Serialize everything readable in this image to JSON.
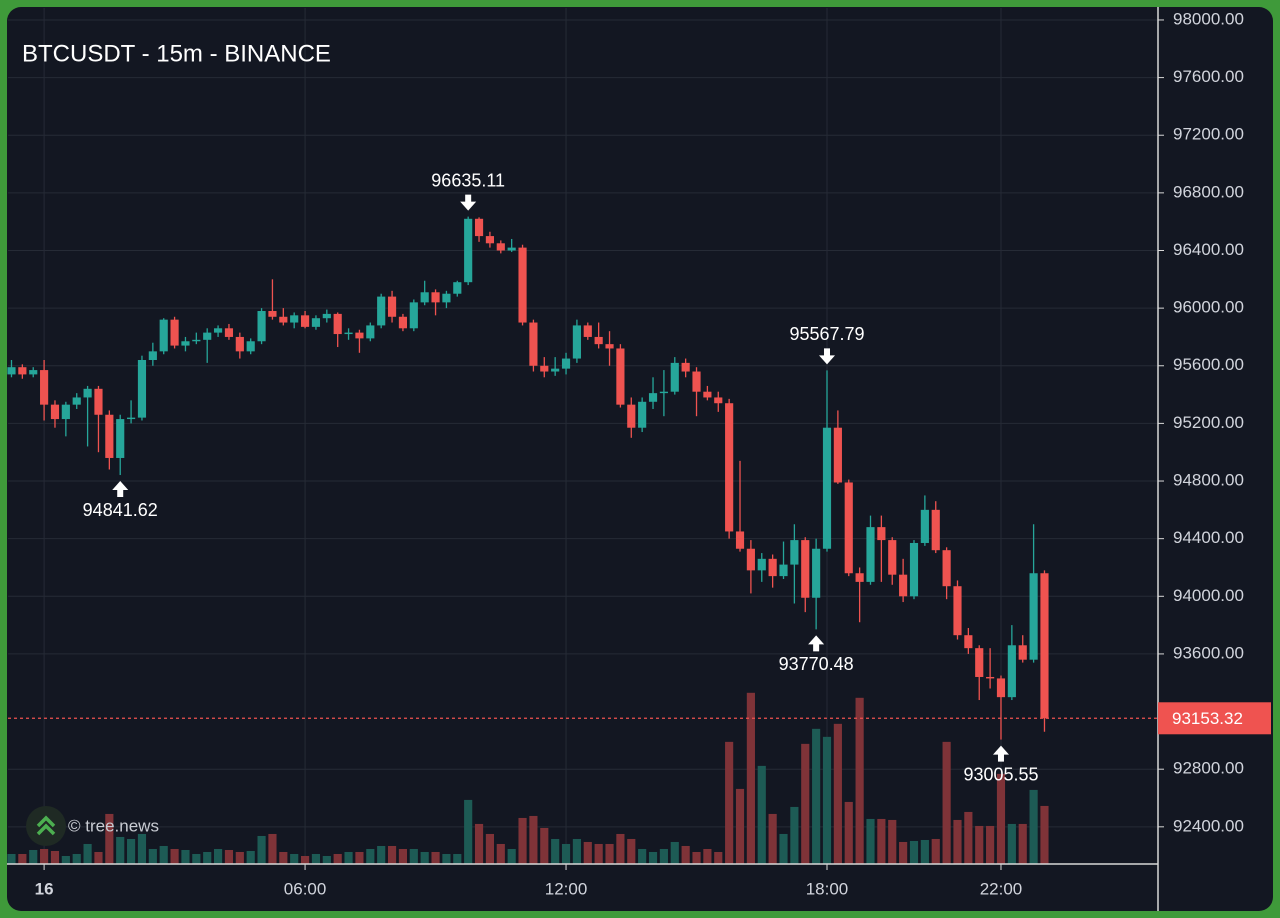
{
  "chart_data": {
    "type": "candlestick",
    "title": "BTCUSDT - 15m - BINANCE",
    "watermark": "© tree.news",
    "x": [
      -0.75,
      -0.5,
      -0.25,
      0,
      0.25,
      0.5,
      0.75,
      1,
      1.25,
      1.5,
      1.75,
      2,
      2.25,
      2.5,
      2.75,
      3,
      3.25,
      3.5,
      3.75,
      4,
      4.25,
      4.5,
      4.75,
      5,
      5.25,
      5.5,
      5.75,
      6,
      6.25,
      6.5,
      6.75,
      7,
      7.25,
      7.5,
      7.75,
      8,
      8.25,
      8.5,
      8.75,
      9,
      9.25,
      9.5,
      9.75,
      10,
      10.25,
      10.5,
      10.75,
      11,
      11.25,
      11.5,
      11.75,
      12,
      12.25,
      12.5,
      12.75,
      13,
      13.25,
      13.5,
      13.75,
      14,
      14.25,
      14.5,
      14.75,
      15,
      15.25,
      15.5,
      15.75,
      16,
      16.25,
      16.5,
      16.75,
      17,
      17.25,
      17.5,
      17.75,
      18,
      18.25,
      18.5,
      18.75,
      19,
      19.25,
      19.5,
      19.75,
      20,
      20.25,
      20.5,
      20.75,
      21,
      21.25,
      21.5,
      21.75,
      22,
      22.25,
      22.5,
      22.75,
      23
    ],
    "open": [
      95540,
      95590,
      95540,
      95570,
      95330,
      95230,
      95330,
      95380,
      95440,
      95260,
      94960,
      95230,
      95240,
      95640,
      95700,
      95920,
      95740,
      95770,
      95780,
      95830,
      95860,
      95800,
      95700,
      95770,
      95980,
      95940,
      95900,
      95950,
      95870,
      95930,
      95960,
      95820,
      95830,
      95790,
      95880,
      96080,
      95940,
      95860,
      96040,
      96110,
      96040,
      96100,
      96180,
      96620,
      96500,
      96450,
      96400,
      96420,
      95900,
      95600,
      95560,
      95580,
      95650,
      95880,
      95800,
      95750,
      95720,
      95330,
      95170,
      95350,
      95410,
      95420,
      95620,
      95560,
      95420,
      95380,
      95340,
      94450,
      94330,
      94180,
      94260,
      94140,
      94220,
      94390,
      93990,
      94330,
      95170,
      94790,
      94160,
      94100,
      94480,
      94390,
      94150,
      94000,
      94370,
      94600,
      94320,
      94070,
      93730,
      93640,
      93440,
      93430,
      93300,
      93660,
      93560,
      94160
    ],
    "high": [
      95640,
      95610,
      95590,
      95640,
      95360,
      95350,
      95410,
      95460,
      95460,
      95290,
      95260,
      95360,
      95670,
      95760,
      95930,
      95940,
      95800,
      95830,
      95860,
      95880,
      95890,
      95830,
      95790,
      96000,
      96200,
      96000,
      95970,
      95980,
      95950,
      95990,
      95970,
      95860,
      95850,
      95900,
      96100,
      96120,
      95960,
      96060,
      96190,
      96130,
      96120,
      96190,
      96635.11,
      96630,
      96530,
      96470,
      96480,
      96440,
      95920,
      95660,
      95660,
      95690,
      95920,
      95900,
      95900,
      95840,
      95750,
      95380,
      95380,
      95520,
      95570,
      95660,
      95650,
      95590,
      95460,
      95420,
      95370,
      94940,
      94390,
      94300,
      94290,
      94380,
      94500,
      94410,
      94400,
      95567.79,
      95290,
      94810,
      94200,
      94560,
      94560,
      94410,
      94260,
      94390,
      94700,
      94660,
      94340,
      94110,
      93780,
      93660,
      93640,
      93450,
      93800,
      93730,
      94500,
      94180
    ],
    "low": [
      95520,
      95510,
      95520,
      95220,
      95170,
      95110,
      95300,
      95040,
      95000,
      94880,
      94841.62,
      95200,
      95220,
      95600,
      95680,
      95720,
      95700,
      95750,
      95620,
      95800,
      95780,
      95650,
      95680,
      95750,
      95920,
      95880,
      95860,
      95860,
      95850,
      95900,
      95730,
      95780,
      95690,
      95770,
      95860,
      95900,
      95840,
      95840,
      96020,
      95950,
      96000,
      96080,
      96160,
      96460,
      96420,
      96380,
      96390,
      95880,
      95560,
      95520,
      95530,
      95540,
      95620,
      95780,
      95720,
      95600,
      95310,
      95100,
      95140,
      95300,
      95250,
      95400,
      95520,
      95250,
      95360,
      95280,
      94400,
      94310,
      94020,
      94100,
      94060,
      94120,
      93950,
      93890,
      93770.48,
      94310,
      94780,
      94140,
      93820,
      94080,
      94100,
      94080,
      93960,
      93980,
      94350,
      94300,
      93980,
      93700,
      93600,
      93280,
      93360,
      93005.55,
      93280,
      93540,
      93540,
      93060
    ],
    "close": [
      95590,
      95540,
      95570,
      95330,
      95230,
      95330,
      95380,
      95440,
      95260,
      94960,
      95230,
      95240,
      95640,
      95700,
      95920,
      95740,
      95770,
      95780,
      95830,
      95860,
      95800,
      95700,
      95770,
      95980,
      95940,
      95900,
      95950,
      95870,
      95930,
      95960,
      95820,
      95830,
      95790,
      95880,
      96080,
      95940,
      95860,
      96040,
      96110,
      96040,
      96100,
      96180,
      96620,
      96500,
      96450,
      96400,
      96420,
      95900,
      95600,
      95560,
      95580,
      95650,
      95880,
      95800,
      95750,
      95720,
      95330,
      95170,
      95350,
      95410,
      95420,
      95620,
      95560,
      95420,
      95380,
      95340,
      94450,
      94330,
      94180,
      94260,
      94140,
      94220,
      94390,
      93990,
      94330,
      95170,
      94790,
      94160,
      94100,
      94480,
      94390,
      94150,
      94000,
      94370,
      94600,
      94320,
      94070,
      93730,
      93640,
      93440,
      93430,
      93300,
      93660,
      93560,
      94160,
      93153.32
    ],
    "volume": [
      40,
      40,
      56,
      60,
      52,
      32,
      40,
      80,
      48,
      200,
      108,
      100,
      120,
      60,
      72,
      60,
      56,
      40,
      48,
      60,
      56,
      48,
      52,
      112,
      120,
      48,
      40,
      32,
      40,
      32,
      40,
      48,
      48,
      60,
      72,
      72,
      60,
      60,
      48,
      48,
      40,
      40,
      256,
      160,
      120,
      80,
      60,
      184,
      192,
      144,
      100,
      80,
      100,
      88,
      80,
      80,
      120,
      100,
      60,
      48,
      60,
      88,
      72,
      48,
      60,
      48,
      488,
      300,
      684,
      392,
      200,
      120,
      228,
      480,
      540,
      508,
      560,
      248,
      664,
      180,
      180,
      176,
      88,
      92,
      96,
      100,
      488,
      176,
      208,
      152,
      152,
      360,
      160,
      160,
      296,
      232
    ],
    "up_color": "#26a69a",
    "down_color": "#ef5350",
    "volume_up_color": "#1d5b55",
    "volume_down_color": "#7f3338",
    "xlim": [
      -0.83,
      25.61
    ],
    "ylim": [
      92142,
      98083
    ],
    "volume_ylim": [
      0,
      3420
    ],
    "xticks": [
      {
        "value": 0,
        "label": "16"
      },
      {
        "value": 6,
        "label": "06:00"
      },
      {
        "value": 12,
        "label": "12:00"
      },
      {
        "value": 18,
        "label": "18:00"
      },
      {
        "value": 22,
        "label": "22:00"
      }
    ],
    "yticks": [
      {
        "value": 98000,
        "label": "98000.00"
      },
      {
        "value": 97600,
        "label": "97600.00"
      },
      {
        "value": 97200,
        "label": "97200.00"
      },
      {
        "value": 96800,
        "label": "96800.00"
      },
      {
        "value": 96400,
        "label": "96400.00"
      },
      {
        "value": 96000,
        "label": "96000.00"
      },
      {
        "value": 95600,
        "label": "95600.00"
      },
      {
        "value": 95200,
        "label": "95200.00"
      },
      {
        "value": 94800,
        "label": "94800.00"
      },
      {
        "value": 94400,
        "label": "94400.00"
      },
      {
        "value": 94000,
        "label": "94000.00"
      },
      {
        "value": 93600,
        "label": "93600.00"
      },
      {
        "value": 92800,
        "label": "92800.00"
      },
      {
        "value": 92400,
        "label": "92400.00"
      }
    ],
    "grid": true,
    "annotations": [
      {
        "x": 1.75,
        "value": 94841.62,
        "side": "below"
      },
      {
        "x": 9.75,
        "value": 96635.11,
        "side": "above"
      },
      {
        "x": 18,
        "value": 95567.79,
        "side": "above"
      },
      {
        "x": 17.75,
        "value": 93770.48,
        "side": "below"
      },
      {
        "x": 22,
        "value": 93005.55,
        "side": "below"
      }
    ]
  }
}
